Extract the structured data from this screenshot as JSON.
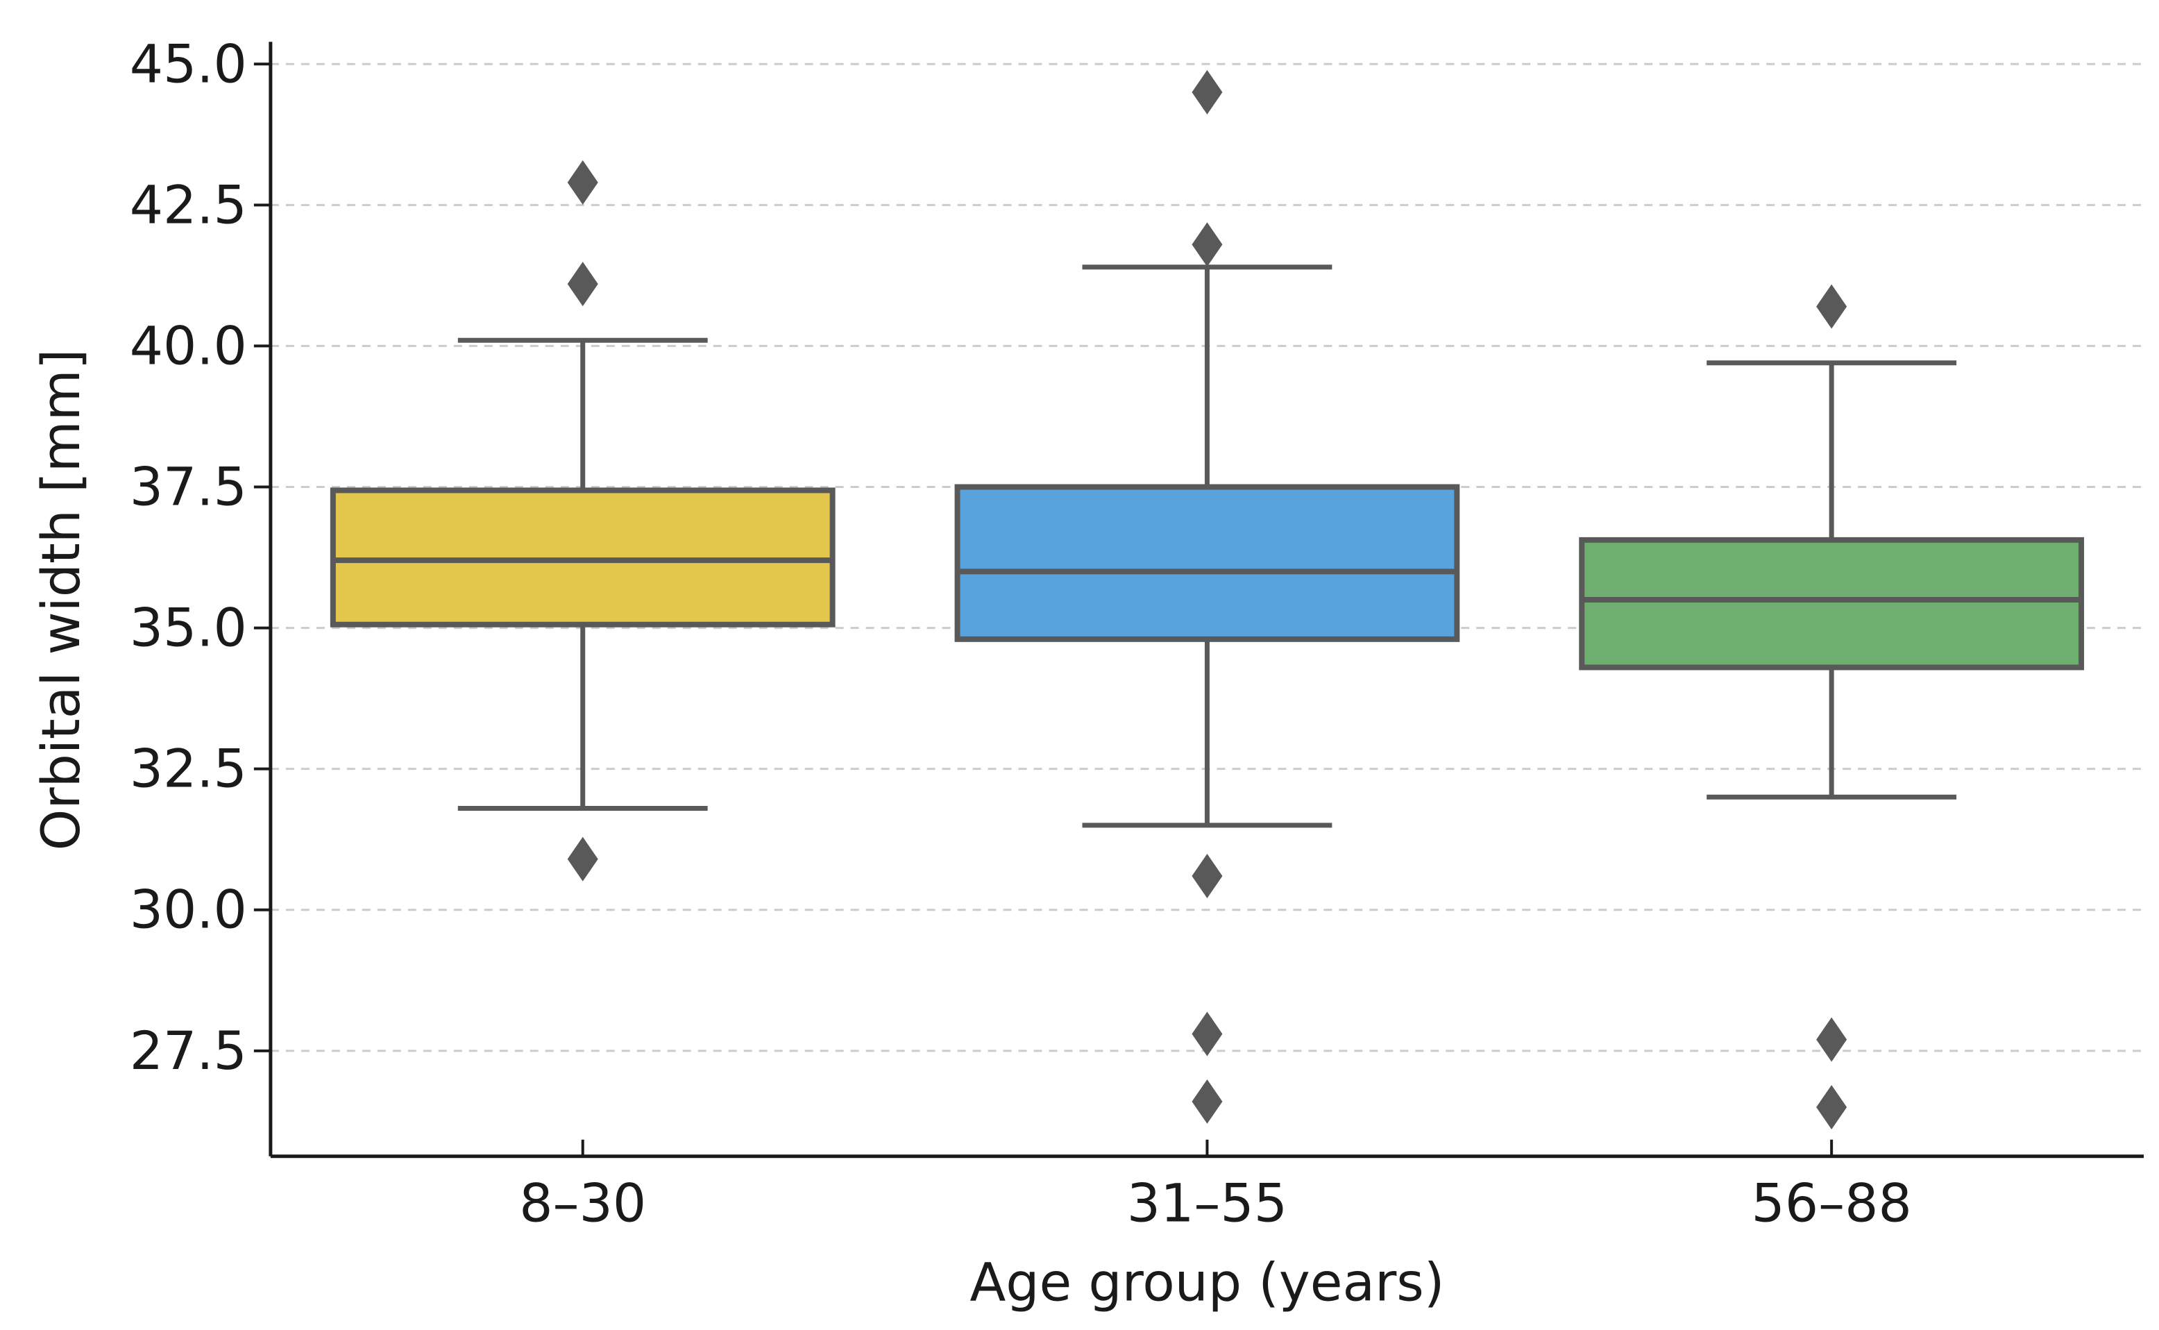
{
  "chart_data": {
    "type": "box",
    "xlabel": "Age group (years)",
    "ylabel": "Orbital width [mm]",
    "ylim": [
      25.6,
      45.4
    ],
    "yticks": [
      "27.5",
      "30.0",
      "32.5",
      "35.0",
      "37.5",
      "40.0",
      "42.5",
      "45.0"
    ],
    "ytick_values": [
      27.5,
      30.0,
      32.5,
      35.0,
      37.5,
      40.0,
      42.5,
      45.0
    ],
    "grid": "horizontal dashed",
    "categories": [
      "8–30",
      "31–55",
      "56–88"
    ],
    "boxes": [
      {
        "category": "8–30",
        "color": "#e3c74d",
        "whisker_low": 31.8,
        "q1": 35.06,
        "median": 36.2,
        "q3": 37.44,
        "whisker_high": 40.1,
        "outliers": [
          42.9,
          41.1,
          30.9
        ]
      },
      {
        "category": "31–55",
        "color": "#58a2de",
        "whisker_low": 31.5,
        "q1": 34.8,
        "median": 36.0,
        "q3": 37.5,
        "whisker_high": 41.4,
        "outliers": [
          44.5,
          41.8,
          30.6,
          27.8,
          26.6
        ]
      },
      {
        "category": "56–88",
        "color": "#6eae6e",
        "whisker_low": 32.0,
        "q1": 34.3,
        "median": 35.5,
        "q3": 36.56,
        "whisker_high": 39.7,
        "outliers": [
          40.7,
          27.7,
          26.5
        ]
      }
    ],
    "line_color": "#595959",
    "grid_color": "#cccccc"
  }
}
